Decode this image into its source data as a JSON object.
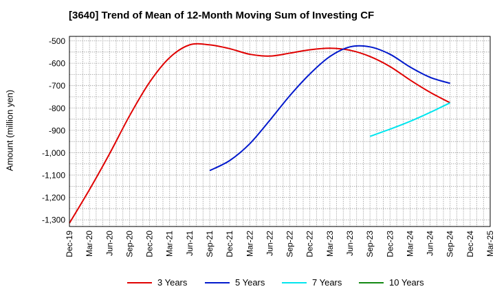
{
  "chart_data": {
    "type": "line",
    "title": "[3640]  Trend of Mean of 12-Month Moving Sum of Investing CF",
    "xlabel": "",
    "ylabel": "Amount (million yen)",
    "ylim": [
      -1330,
      -480
    ],
    "yticks": [
      -500,
      -600,
      -700,
      -800,
      -900,
      -1000,
      -1100,
      -1200,
      -1300
    ],
    "ytick_labels": [
      "-500",
      "-600",
      "-700",
      "-800",
      "-900",
      "-1,000",
      "-1,100",
      "-1,200",
      "-1,300"
    ],
    "xtick_labels": [
      "Dec-19",
      "Mar-20",
      "Jun-20",
      "Sep-20",
      "Dec-20",
      "Mar-21",
      "Jun-21",
      "Sep-21",
      "Dec-21",
      "Mar-22",
      "Jun-22",
      "Sep-22",
      "Dec-22",
      "Mar-23",
      "Jun-23",
      "Sep-23",
      "Dec-23",
      "Mar-24",
      "Jun-24",
      "Sep-24",
      "Dec-24",
      "Mar-25"
    ],
    "grid": true,
    "legend_position": "bottom",
    "series": [
      {
        "name": "3 Years",
        "color": "#e00000",
        "x": [
          "Dec-19",
          "Mar-20",
          "Jun-20",
          "Sep-20",
          "Dec-20",
          "Mar-21",
          "Jun-21",
          "Sep-21",
          "Dec-21",
          "Mar-22",
          "Jun-22",
          "Sep-22",
          "Dec-22",
          "Mar-23",
          "Jun-23",
          "Sep-23",
          "Dec-23",
          "Mar-24",
          "Jun-24",
          "Sep-24"
        ],
        "values": [
          -1315,
          -1165,
          -1005,
          -835,
          -685,
          -575,
          -518,
          -518,
          -535,
          -560,
          -568,
          -555,
          -540,
          -533,
          -542,
          -570,
          -615,
          -675,
          -730,
          -777
        ]
      },
      {
        "name": "5 Years",
        "color": "#0018cc",
        "x": [
          "Sep-21",
          "Dec-21",
          "Mar-22",
          "Jun-22",
          "Sep-22",
          "Dec-22",
          "Mar-23",
          "Jun-23",
          "Sep-23",
          "Dec-23",
          "Mar-24",
          "Jun-24",
          "Sep-24"
        ],
        "values": [
          -1080,
          -1035,
          -960,
          -855,
          -745,
          -648,
          -570,
          -527,
          -527,
          -560,
          -617,
          -663,
          -690
        ]
      },
      {
        "name": "7 Years",
        "color": "#00e5ee",
        "x": [
          "Sep-23",
          "Dec-23",
          "Mar-24",
          "Jun-24",
          "Sep-24"
        ],
        "values": [
          -927,
          -895,
          -860,
          -820,
          -777
        ]
      },
      {
        "name": "10 Years",
        "color": "#118811",
        "x": [],
        "values": []
      }
    ]
  }
}
